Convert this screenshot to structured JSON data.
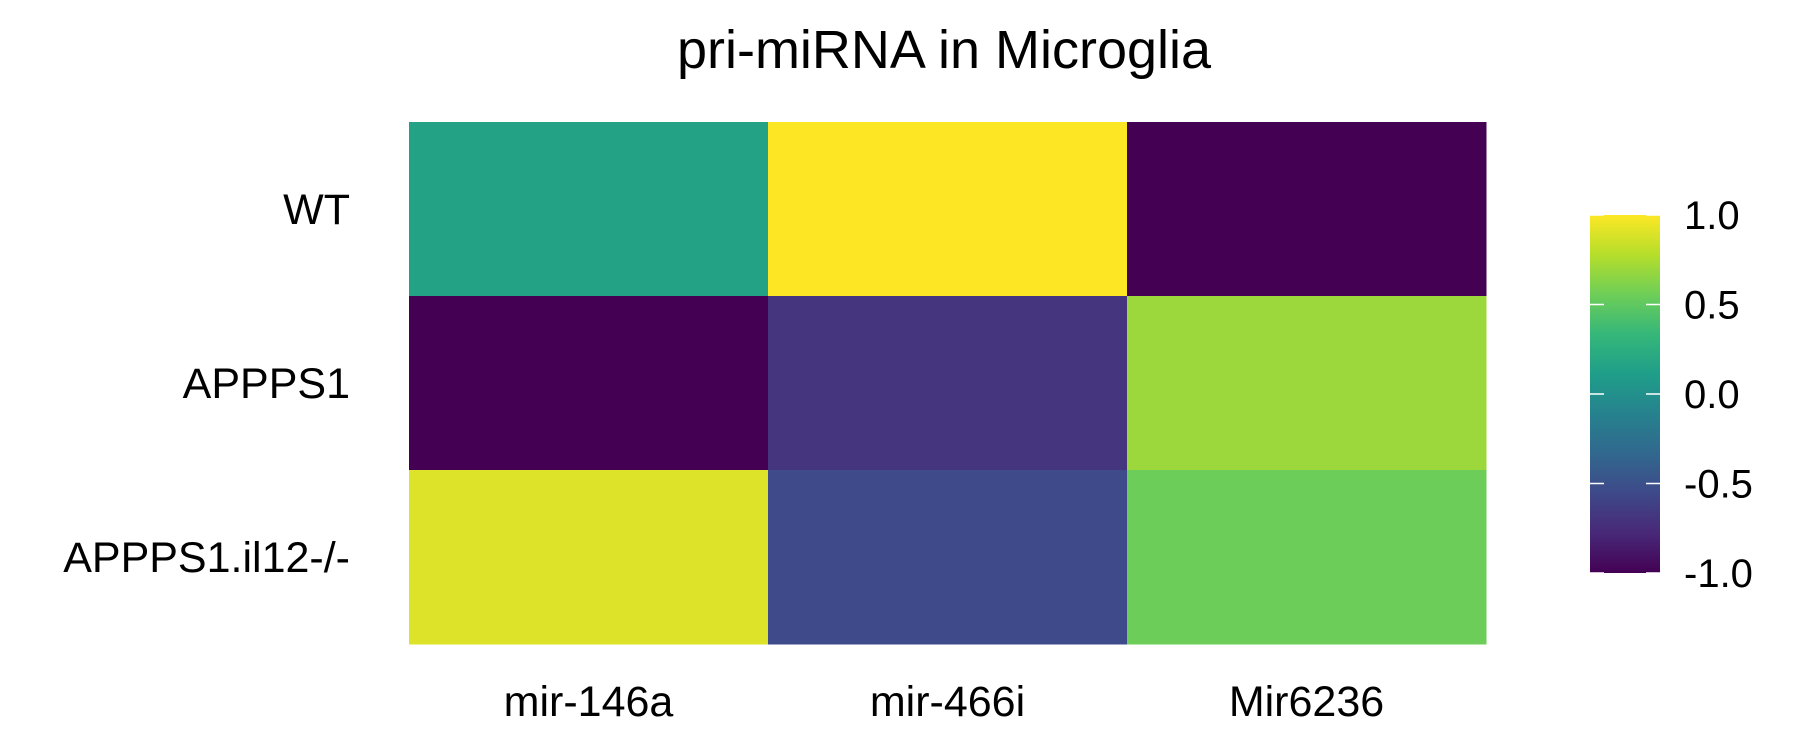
{
  "chart_data": {
    "type": "heatmap",
    "title": "pri-miRNA in Microglia",
    "xlabel": "",
    "ylabel": "",
    "columns": [
      "mir-146a",
      "mir-466i",
      "Mir6236"
    ],
    "rows": [
      "WT",
      "APPPS1",
      "APPPS1.il12-/-"
    ],
    "values": [
      [
        0.15,
        1.0,
        -1.0
      ],
      [
        -1.0,
        -0.7,
        0.7
      ],
      [
        0.9,
        -0.55,
        0.55
      ]
    ],
    "color_scale": {
      "name": "viridis",
      "min": -1.0,
      "max": 1.0,
      "ticks": [
        1.0,
        0.5,
        0.0,
        -0.5,
        -1.0
      ],
      "tick_labels": [
        "1.0",
        "0.5",
        "0.0",
        "-0.5",
        "-1.0"
      ],
      "stops": [
        "#440154",
        "#482878",
        "#3e4989",
        "#31688e",
        "#26828e",
        "#1f9e89",
        "#35b779",
        "#6ece58",
        "#b5de2b",
        "#fde725"
      ]
    },
    "legend_placement": "right",
    "grid": false
  }
}
